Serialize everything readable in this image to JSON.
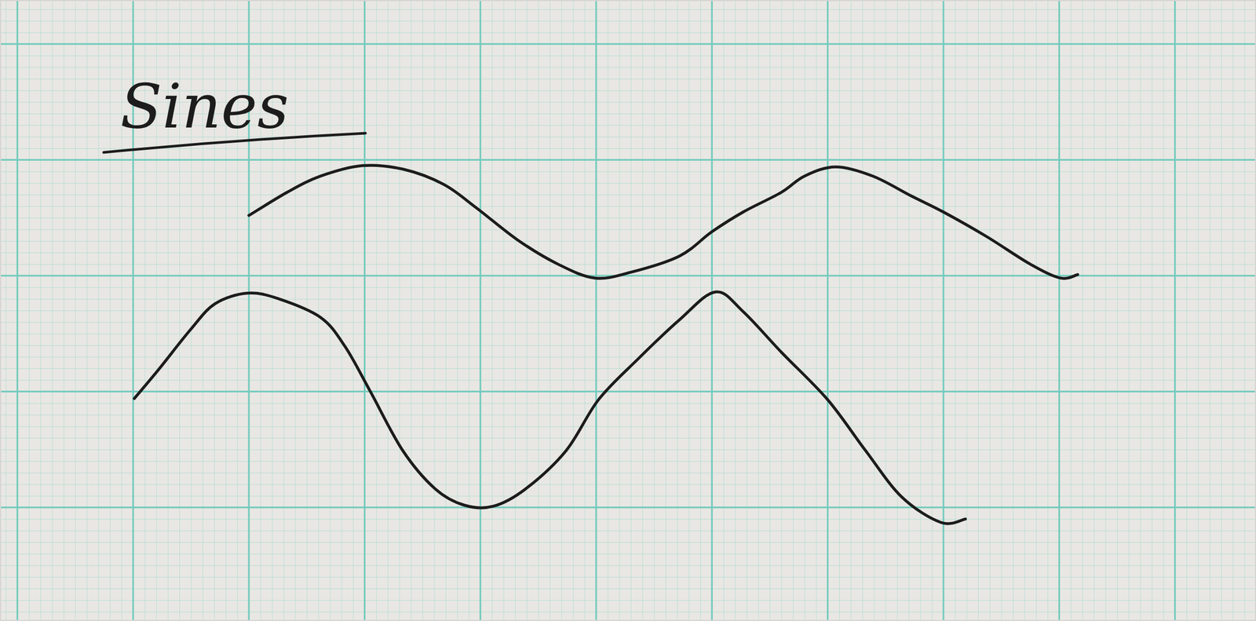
{
  "chart_data": {
    "type": "line",
    "title": "Sines",
    "xlim": [
      -0.15,
      10.7
    ],
    "ylim": [
      0.02,
      5.38
    ],
    "xticks": [
      0,
      1,
      2,
      3,
      4,
      5,
      6,
      7,
      8,
      9,
      10
    ],
    "yticks": [
      1,
      2,
      3,
      4,
      5
    ],
    "grid": true,
    "tick_labels": false,
    "series": [
      {
        "color": "#1c1c1c",
        "line_style": "solid",
        "x": [
          2.0,
          2.33,
          2.62,
          2.98,
          3.33,
          3.68,
          3.96,
          4.32,
          4.67,
          4.99,
          5.3,
          5.72,
          6.0,
          6.27,
          6.6,
          6.8,
          7.07,
          7.39,
          7.72,
          8.0,
          8.37,
          8.75,
          9.01,
          9.16
        ],
        "values": [
          3.52,
          3.72,
          3.86,
          3.95,
          3.92,
          3.79,
          3.59,
          3.31,
          3.1,
          2.98,
          3.03,
          3.17,
          3.38,
          3.55,
          3.72,
          3.86,
          3.94,
          3.86,
          3.69,
          3.55,
          3.34,
          3.1,
          2.98,
          3.01
        ]
      },
      {
        "color": "#1c1c1c",
        "line_style": "solid",
        "x": [
          1.01,
          1.22,
          1.5,
          1.71,
          1.99,
          2.26,
          2.62,
          2.83,
          3.05,
          3.33,
          3.61,
          3.86,
          4.11,
          4.39,
          4.74,
          5.02,
          5.36,
          5.72,
          6.03,
          6.27,
          6.6,
          7.0,
          7.32,
          7.64,
          7.98,
          8.19
        ],
        "values": [
          1.94,
          2.19,
          2.54,
          2.76,
          2.85,
          2.8,
          2.64,
          2.39,
          2.0,
          1.49,
          1.16,
          1.02,
          1.01,
          1.16,
          1.49,
          1.93,
          2.28,
          2.62,
          2.86,
          2.69,
          2.34,
          1.93,
          1.5,
          1.09,
          0.87,
          0.9
        ]
      }
    ]
  }
}
